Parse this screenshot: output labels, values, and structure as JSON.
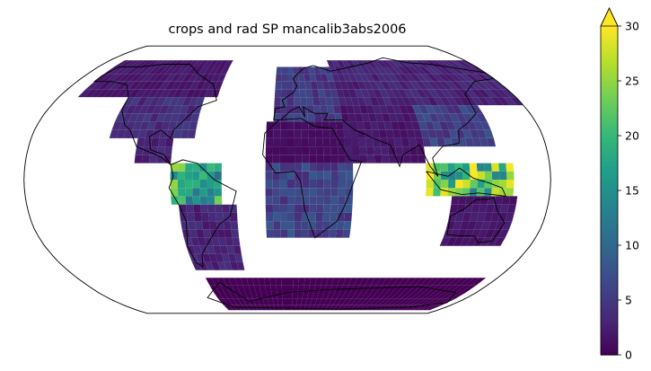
{
  "title": "crops and rad SP mancalib3abs2006",
  "projection": "Robinson",
  "colormap": "viridis",
  "colorbar": {
    "min": 0,
    "max": 30,
    "extend": "max",
    "ticks": [
      "0",
      "5",
      "10",
      "15",
      "20",
      "25",
      "30"
    ],
    "colors": [
      "#440154",
      "#482878",
      "#3e4989",
      "#31688e",
      "#26828e",
      "#1f9e89",
      "#35b779",
      "#6ece58",
      "#b5de2b",
      "#fde725"
    ]
  },
  "coastline_color": "#000000",
  "chart_data": {
    "type": "heatmap",
    "title": "crops and rad SP mancalib3abs2006",
    "value_range": [
      0,
      30
    ],
    "regions": [
      {
        "lon": [
          -165,
          -55
        ],
        "lat": [
          50,
          75
        ],
        "value": 2
      },
      {
        "lon": [
          -125,
          -65
        ],
        "lat": [
          25,
          50
        ],
        "value": 4
      },
      {
        "lon": [
          -105,
          -80
        ],
        "lat": [
          10,
          25
        ],
        "value": 3
      },
      {
        "lon": [
          -80,
          -45
        ],
        "lat": [
          -15,
          10
        ],
        "value": 18
      },
      {
        "lon": [
          -75,
          -35
        ],
        "lat": [
          -55,
          -15
        ],
        "value": 3
      },
      {
        "lon": [
          -10,
          40
        ],
        "lat": [
          35,
          70
        ],
        "value": 5
      },
      {
        "lon": [
          40,
          180
        ],
        "lat": [
          45,
          75
        ],
        "value": 3
      },
      {
        "lon": [
          -15,
          50
        ],
        "lat": [
          10,
          35
        ],
        "value": 1
      },
      {
        "lon": [
          -15,
          45
        ],
        "lat": [
          -35,
          10
        ],
        "value": 6
      },
      {
        "lon": [
          40,
          95
        ],
        "lat": [
          10,
          45
        ],
        "value": 2
      },
      {
        "lon": [
          95,
          145
        ],
        "lat": [
          20,
          45
        ],
        "value": 6
      },
      {
        "lon": [
          95,
          155
        ],
        "lat": [
          -10,
          10
        ],
        "value": 22
      },
      {
        "lon": [
          113,
          155
        ],
        "lat": [
          -40,
          -10
        ],
        "value": 2
      },
      {
        "lon": [
          -70,
          170
        ],
        "lat": [
          -85,
          -60
        ],
        "value": 0
      }
    ]
  }
}
